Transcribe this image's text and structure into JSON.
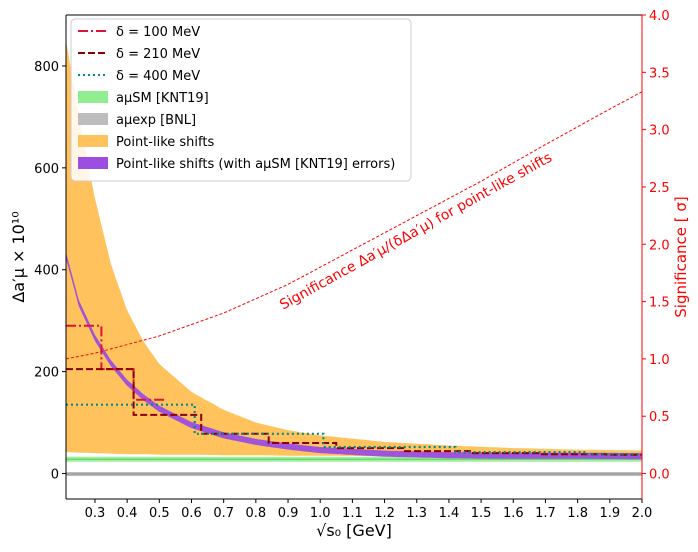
{
  "chart_data": {
    "type": "line",
    "xlabel": "√s₀ [GeV]",
    "ylabel_left": "Δa′μ × 10¹⁰",
    "ylabel_right": "Significance [ σ]",
    "xlim": [
      0.21,
      2.0
    ],
    "ylim_left": [
      -50,
      900
    ],
    "ylim_right": [
      -0.2222,
      4.0
    ],
    "x_ticks": [
      0.3,
      0.4,
      0.5,
      0.6,
      0.7,
      0.8,
      0.9,
      1.0,
      1.1,
      1.2,
      1.3,
      1.4,
      1.5,
      1.6,
      1.7,
      1.8,
      1.9,
      2.0
    ],
    "x_tick_labels": [
      "0.3",
      "0.4",
      "0.5",
      "0.6",
      "0.7",
      "0.8",
      "0.9",
      "1.0",
      "1.1",
      "1.2",
      "1.3",
      "1.4",
      "1.5",
      "1.6",
      "1.7",
      "1.8",
      "1.9",
      "2.0"
    ],
    "y_left_ticks": [
      0,
      200,
      400,
      600,
      800
    ],
    "y_left_tick_labels": [
      "0",
      "200",
      "400",
      "600",
      "800"
    ],
    "y_right_ticks": [
      0.0,
      0.5,
      1.0,
      1.5,
      2.0,
      2.5,
      3.0,
      3.5,
      4.0
    ],
    "y_right_tick_labels": [
      "0.0",
      "0.5",
      "1.0",
      "1.5",
      "2.0",
      "2.5",
      "3.0",
      "3.5",
      "4.0"
    ],
    "annotation": "Significance Δa′μ/(δΔa′μ) for point-like shifts",
    "legend_position": "top-left",
    "legend": [
      {
        "label": "δ = 100 MeV",
        "kind": "dashdot",
        "color": "#dc143c"
      },
      {
        "label": "δ = 210 MeV",
        "kind": "dashed",
        "color": "#8b0000"
      },
      {
        "label": "δ = 400 MeV",
        "kind": "dotted",
        "color": "#008b8b"
      },
      {
        "label": "aμSM [KNT19]",
        "kind": "band",
        "color": "#90ee90"
      },
      {
        "label": "aμexp [BNL]",
        "kind": "band",
        "color": "#bdbdbd"
      },
      {
        "label": "Point-like shifts",
        "kind": "band",
        "color": "#ffc25c"
      },
      {
        "label": "Point-like shifts (with aμSM [KNT19] errors)",
        "kind": "band",
        "color": "#9b4ee0"
      }
    ],
    "point_like_shift": {
      "x": [
        0.21,
        0.25,
        0.3,
        0.35,
        0.4,
        0.45,
        0.5,
        0.6,
        0.7,
        0.8,
        0.9,
        1.0,
        1.2,
        1.4,
        1.6,
        1.8,
        2.0
      ],
      "center": [
        428,
        334,
        266,
        216,
        178,
        150,
        127,
        95,
        75,
        62,
        53,
        46,
        39,
        36,
        35,
        35,
        34
      ],
      "band_low": [
        42,
        41,
        40,
        39,
        38,
        38,
        37,
        37,
        36,
        36,
        35,
        35,
        34,
        34,
        33,
        33,
        32
      ],
      "band_high": [
        850,
        700,
        540,
        410,
        320,
        260,
        215,
        160,
        125,
        100,
        85,
        75,
        62,
        55,
        50,
        47,
        45
      ],
      "purple_halfwidth": 6
    },
    "bands": {
      "knt19": {
        "low": 23,
        "high": 33,
        "center": 28
      },
      "bnl": {
        "low": -5,
        "high": 3
      }
    },
    "series": [
      {
        "name": "δ = 100 MeV",
        "bins": [
          [
            0.21,
            0.32,
            290
          ],
          [
            0.32,
            0.42,
            205
          ],
          [
            0.42,
            0.52,
            145
          ]
        ]
      },
      {
        "name": "δ = 210 MeV",
        "bins": [
          [
            0.21,
            0.42,
            205
          ],
          [
            0.42,
            0.63,
            115
          ],
          [
            0.63,
            0.84,
            78
          ],
          [
            0.84,
            1.05,
            60
          ],
          [
            1.05,
            1.26,
            50
          ],
          [
            1.26,
            1.47,
            44
          ],
          [
            1.47,
            1.68,
            40
          ],
          [
            1.68,
            1.89,
            38
          ],
          [
            1.89,
            2.0,
            37
          ]
        ]
      },
      {
        "name": "δ = 400 MeV",
        "bins": [
          [
            0.21,
            0.61,
            135
          ],
          [
            0.61,
            1.01,
            78
          ],
          [
            1.01,
            1.42,
            52
          ],
          [
            1.42,
            1.82,
            42
          ],
          [
            1.82,
            2.0,
            38
          ]
        ]
      }
    ],
    "significance": {
      "x": [
        0.21,
        0.3,
        0.5,
        0.7,
        0.9,
        1.1,
        1.3,
        1.5,
        1.7,
        1.9,
        2.0
      ],
      "y": [
        1.0,
        1.05,
        1.2,
        1.4,
        1.65,
        1.95,
        2.25,
        2.55,
        2.87,
        3.18,
        3.33
      ]
    }
  },
  "colors": {
    "axis": "#000000",
    "right_axis": "#ff0000",
    "orange_band": "#ffc25c",
    "purple": "#9b4ee0",
    "green": "#90ee90",
    "green_line": "#6fd66f",
    "grey": "#bdbdbd",
    "grey_line": "#8a8a8a",
    "delta100": "#dc143c",
    "delta210": "#8b0000",
    "delta400": "#008b8b",
    "significance": "#ff0000"
  }
}
